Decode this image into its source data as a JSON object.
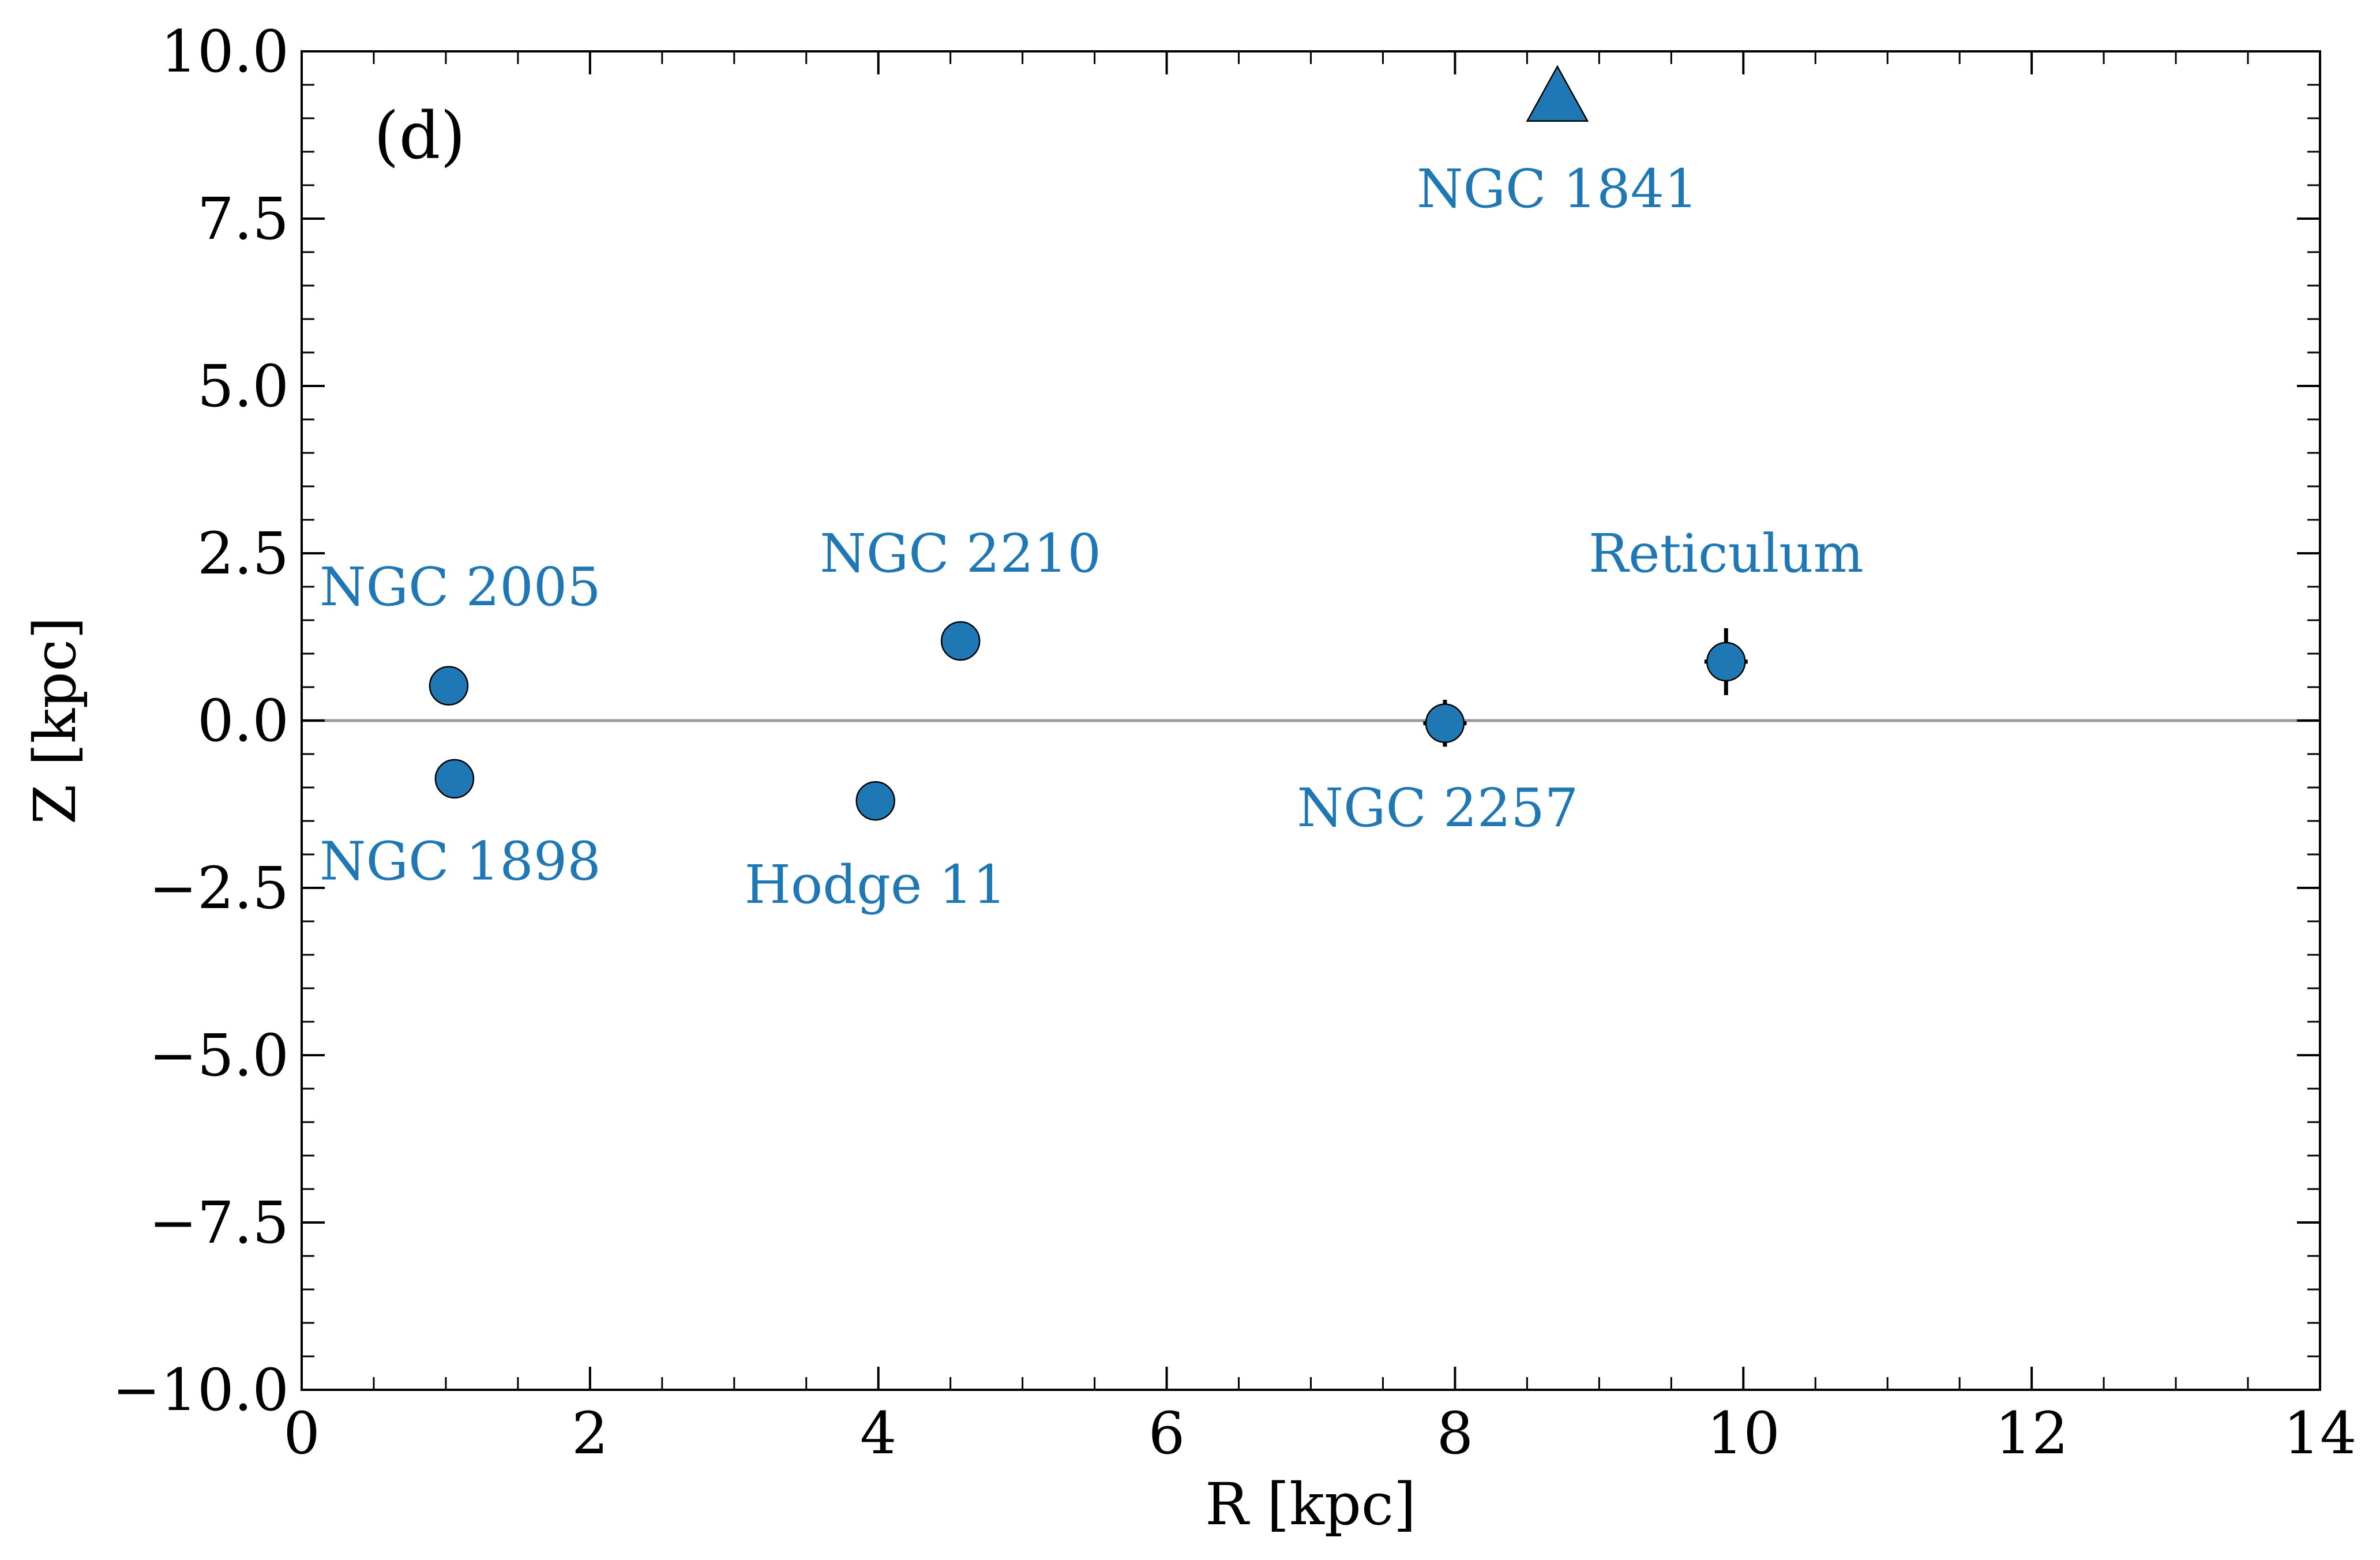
{
  "chart_data": {
    "type": "scatter",
    "title": "",
    "panel_label": "(d)",
    "xlabel": "R [kpc]",
    "ylabel": "Z [kpc]",
    "xlim": [
      0,
      14
    ],
    "ylim": [
      -10,
      10
    ],
    "x_ticks": [
      0,
      2,
      4,
      6,
      8,
      10,
      12,
      14
    ],
    "x_tick_labels": [
      "0",
      "2",
      "4",
      "6",
      "8",
      "10",
      "12",
      "14"
    ],
    "y_ticks": [
      10,
      7.5,
      5,
      2.5,
      0,
      -2.5,
      -5,
      -7.5,
      -10
    ],
    "y_tick_labels": [
      "10.0",
      "7.5",
      "5.0",
      "2.5",
      "0.0",
      "−2.5",
      "−5.0",
      "−7.5",
      "−10.0"
    ],
    "x_minor_step": 0.5,
    "y_minor_step": 0.5,
    "grid": false,
    "reference_line": {
      "y": 0,
      "color": "#999999"
    },
    "marker_color": "#1f77b4",
    "label_color": "#1f77b4",
    "points": [
      {
        "name": "NGC 2005",
        "x": 1.02,
        "y": 0.52,
        "marker": "circle",
        "xerr": 0,
        "yerr": 0,
        "label_x": 1.1,
        "label_y": 2.0
      },
      {
        "name": "NGC 1898",
        "x": 1.06,
        "y": -0.87,
        "marker": "circle",
        "xerr": 0,
        "yerr": 0,
        "label_x": 1.1,
        "label_y": -2.1
      },
      {
        "name": "NGC 2210",
        "x": 4.57,
        "y": 1.19,
        "marker": "circle",
        "xerr": 0,
        "yerr": 0,
        "label_x": 4.57,
        "label_y": 2.5
      },
      {
        "name": "Hodge 11",
        "x": 3.98,
        "y": -1.2,
        "marker": "circle",
        "xerr": 0,
        "yerr": 0,
        "label_x": 3.98,
        "label_y": -2.45
      },
      {
        "name": "NGC 2257",
        "x": 7.93,
        "y": -0.04,
        "marker": "circle",
        "xerr": 0.15,
        "yerr": 0.35,
        "label_x": 7.88,
        "label_y": -1.3
      },
      {
        "name": "Reticulum",
        "x": 9.88,
        "y": 0.88,
        "marker": "circle",
        "xerr": 0.15,
        "yerr": 0.5,
        "label_x": 9.88,
        "label_y": 2.5
      },
      {
        "name": "NGC 1841",
        "x": 8.71,
        "y": 9.3,
        "marker": "triangle",
        "xerr": 0,
        "yerr": 0,
        "label_x": 8.71,
        "label_y": 7.95
      }
    ]
  }
}
